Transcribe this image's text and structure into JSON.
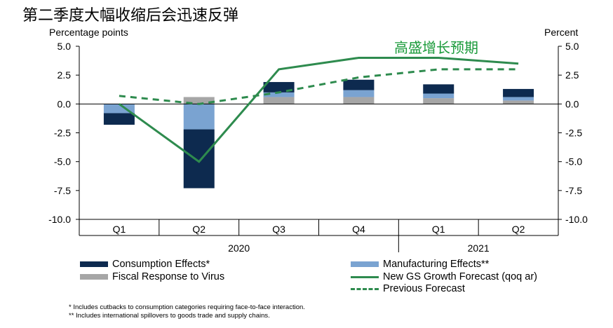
{
  "headline": "第二季度大幅收缩后会迅速反弹",
  "annotation": "高盛增长预期",
  "chart_data": {
    "type": "bar",
    "subtype": "stacked-bar-with-lines",
    "ylabel_left": "Percentage points",
    "ylabel_right": "Percent",
    "ylim": [
      -10,
      5
    ],
    "yticks": [
      -10,
      -7.5,
      -5,
      -2.5,
      0,
      2.5,
      5
    ],
    "ytick_labels": [
      "-10.0",
      "-7.5",
      "-5.0",
      "-2.5",
      "0.0",
      "2.5",
      "5.0"
    ],
    "categories": [
      "Q1",
      "Q2",
      "Q3",
      "Q4",
      "Q1",
      "Q2"
    ],
    "year_groups": [
      {
        "label": "2020",
        "span": [
          0,
          3
        ]
      },
      {
        "label": "2021",
        "span": [
          4,
          5
        ]
      }
    ],
    "bar_series": [
      {
        "name": "Fiscal Response to Virus",
        "color": "#a6a6a6",
        "values": [
          0,
          0.6,
          0.6,
          0.6,
          0.5,
          0.3
        ]
      },
      {
        "name": "Manufacturing Effects**",
        "color": "#7aa3d1",
        "values": [
          -0.8,
          -2.2,
          0.4,
          0.6,
          0.4,
          0.3
        ]
      },
      {
        "name": "Consumption Effects*",
        "color": "#0d2a4f",
        "values": [
          -1.0,
          -5.1,
          0.9,
          0.9,
          0.8,
          0.7
        ]
      }
    ],
    "line_series": [
      {
        "name": "New GS Growth Forecast (qoq ar)",
        "style": "solid",
        "color": "#2e8b4e",
        "values": [
          0,
          -5,
          3,
          4,
          4,
          3.5
        ]
      },
      {
        "name": "Previous Forecast",
        "style": "dashed",
        "color": "#2e8b4e",
        "values": [
          0.7,
          0,
          1,
          2.3,
          3,
          3
        ]
      }
    ]
  },
  "legend": {
    "consumption": "Consumption Effects*",
    "manufacturing": "Manufacturing Effects**",
    "fiscal": "Fiscal Response to Virus",
    "new_forecast": "New GS Growth Forecast (qoq ar)",
    "previous_forecast": "Previous Forecast"
  },
  "footnotes": [
    "* Includes cutbacks to consumption categories requiring  face-to-face interaction.",
    "** Includes international  spillovers to goods trade and  supply chains."
  ],
  "colors": {
    "consumption": "#0d2a4f",
    "manufacturing": "#7aa3d1",
    "fiscal": "#a6a6a6",
    "forecast_line": "#2e8b4e",
    "annotation": "#1a9a3a"
  }
}
